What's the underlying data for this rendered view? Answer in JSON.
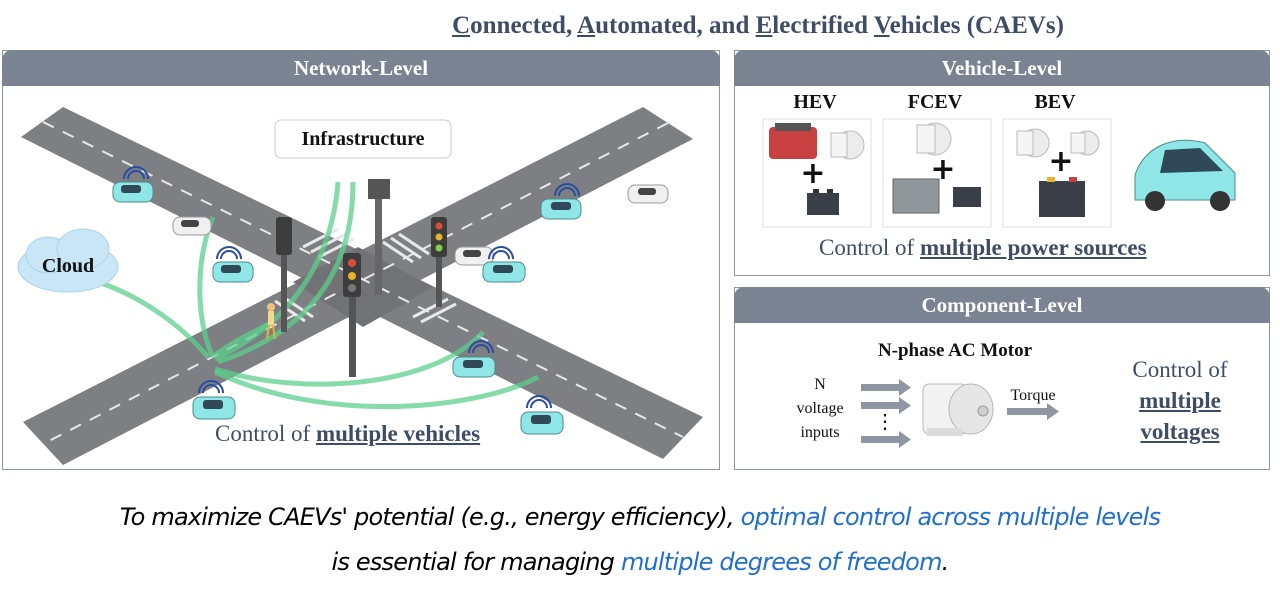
{
  "title": {
    "c1": "C",
    "r1": "onnected, ",
    "c2": "A",
    "r2": "utomated, and ",
    "c3": "E",
    "r3": "lectrified ",
    "c4": "V",
    "r4": "ehicles (CAEVs)"
  },
  "network": {
    "header": "Network-Level",
    "infrastructure_label": "Infrastructure",
    "cloud_label": "Cloud",
    "control_prefix": "Control of ",
    "control_emphasis": "multiple vehicles"
  },
  "vehicle": {
    "header": "Vehicle-Level",
    "types": [
      "HEV",
      "FCEV",
      "BEV"
    ],
    "control_prefix": "Control of ",
    "control_emphasis": "multiple power sources"
  },
  "component": {
    "header": "Component-Level",
    "motor_label": "N-phase AC Motor",
    "inputs_label": [
      "N",
      "voltage",
      "inputs"
    ],
    "dots": "⋮",
    "torque_label": "Torque",
    "control_prefix": "Control of",
    "control_emphasis": [
      "multiple",
      "voltages"
    ]
  },
  "caption": {
    "line1_black": "To maximize CAEVs' potential (e.g., energy efficiency), ",
    "line1_blue": "optimal control across multiple levels",
    "line2_black": "is essential for managing ",
    "line2_blue": "multiple degrees of freedom",
    "line2_end": "."
  },
  "colors": {
    "header_bg": "#7a8391",
    "title_text": "#3e4d66",
    "accent_blue": "#1f6fd1",
    "car": "#8ee6e6",
    "link_green": "#5ccf8c"
  }
}
